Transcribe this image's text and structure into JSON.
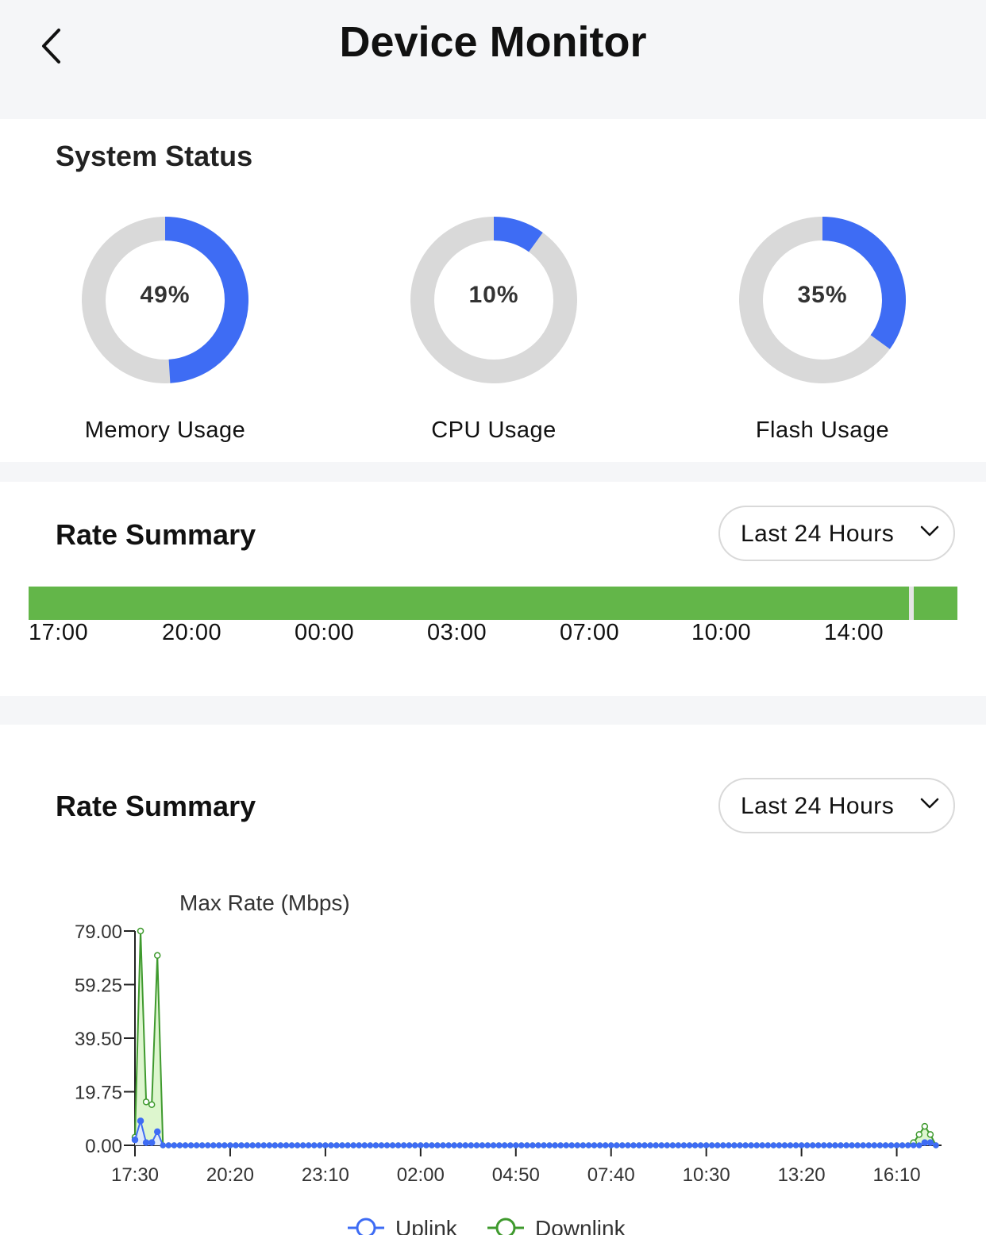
{
  "header": {
    "title": "Device Monitor"
  },
  "system_status": {
    "title": "System Status",
    "gauges": [
      {
        "value": "49%",
        "fraction": 0.49,
        "label": "Memory Usage"
      },
      {
        "value": "10%",
        "fraction": 0.1,
        "label": "CPU Usage"
      },
      {
        "value": "35%",
        "fraction": 0.35,
        "label": "Flash Usage"
      }
    ],
    "colors": {
      "used": "#3e6cf4",
      "free": "#d9d9d9"
    }
  },
  "rate_summary_bar": {
    "title": "Rate Summary",
    "range_label": "Last 24 Hours",
    "ticks": [
      "17:00",
      "20:00",
      "00:00",
      "03:00",
      "07:00",
      "10:00",
      "14:00"
    ],
    "colors": {
      "online": "#63b649",
      "offline": "#e5e5e5"
    }
  },
  "rate_summary_chart": {
    "title": "Rate Summary",
    "range_label": "Last 24 Hours"
  },
  "chart_data": {
    "type": "line",
    "title": "Max Rate (Mbps)",
    "x_ticks": [
      "17:30",
      "20:20",
      "23:10",
      "02:00",
      "04:50",
      "07:40",
      "10:30",
      "13:20",
      "16:10"
    ],
    "y_ticks": [
      "0.00",
      "19.75",
      "39.50",
      "59.25",
      "79.00"
    ],
    "ylim": [
      0,
      79
    ],
    "xlim_minutes": [
      0,
      1440
    ],
    "grid": false,
    "legend_position": "bottom",
    "series": [
      {
        "name": "Uplink",
        "color": "#3e6cf4",
        "fill": "#dfe9ff",
        "points": [
          [
            0,
            2
          ],
          [
            10,
            9
          ],
          [
            20,
            1
          ],
          [
            30,
            1
          ],
          [
            40,
            5
          ],
          [
            50,
            0
          ],
          [
            1400,
            0
          ],
          [
            1410,
            1
          ],
          [
            1420,
            1
          ],
          [
            1430,
            0
          ]
        ]
      },
      {
        "name": "Downlink",
        "color": "#3f9a2e",
        "fill": "#d9f5c9",
        "points": [
          [
            0,
            3
          ],
          [
            10,
            79
          ],
          [
            20,
            16
          ],
          [
            30,
            15
          ],
          [
            40,
            70
          ],
          [
            50,
            0
          ],
          [
            1380,
            0
          ],
          [
            1390,
            1
          ],
          [
            1400,
            4
          ],
          [
            1410,
            7
          ],
          [
            1420,
            4
          ],
          [
            1430,
            0
          ]
        ]
      }
    ]
  }
}
